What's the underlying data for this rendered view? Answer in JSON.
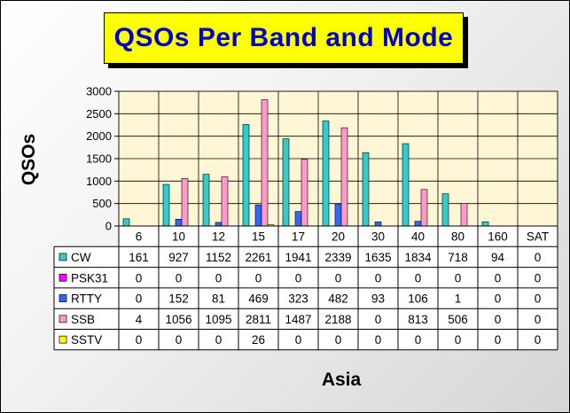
{
  "title": "QSOs Per Band and Mode",
  "chart_data": {
    "type": "bar",
    "title": "QSOs Per Band and Mode",
    "ylabel": "QSOs",
    "xlabel": "Asia",
    "ylim": [
      0,
      3000
    ],
    "yticks": [
      0,
      500,
      1000,
      1500,
      2000,
      2500,
      3000
    ],
    "grid": true,
    "legend": "table",
    "categories": [
      "6",
      "10",
      "12",
      "15",
      "17",
      "20",
      "30",
      "40",
      "80",
      "160",
      "SAT"
    ],
    "series": [
      {
        "name": "CW",
        "color": "#33cccc",
        "values": [
          161,
          927,
          1152,
          2261,
          1941,
          2339,
          1635,
          1834,
          718,
          94,
          0
        ]
      },
      {
        "name": "PSK31",
        "color": "#ff00ff",
        "values": [
          0,
          0,
          0,
          0,
          0,
          0,
          0,
          0,
          0,
          0,
          0
        ]
      },
      {
        "name": "RTTY",
        "color": "#3366ff",
        "values": [
          0,
          152,
          81,
          469,
          323,
          482,
          93,
          106,
          1,
          0,
          0
        ]
      },
      {
        "name": "SSB",
        "color": "#ff99cc",
        "values": [
          4,
          1056,
          1095,
          2811,
          1487,
          2188,
          0,
          813,
          506,
          0,
          0
        ]
      },
      {
        "name": "SSTV",
        "color": "#ffff00",
        "values": [
          0,
          0,
          0,
          26,
          0,
          0,
          0,
          0,
          0,
          0,
          0
        ]
      }
    ]
  }
}
